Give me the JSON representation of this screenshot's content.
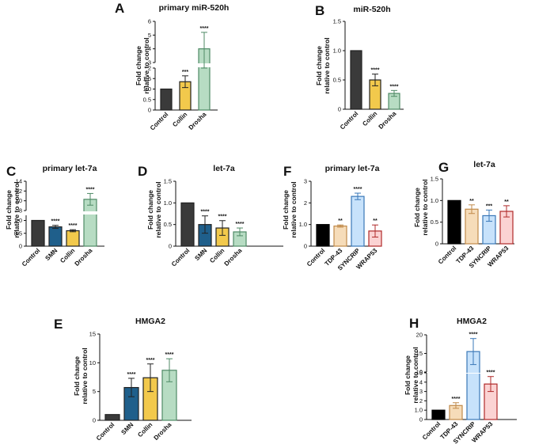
{
  "chart_data": [
    {
      "panel": "A",
      "type": "bar",
      "title": "primary miR-520h",
      "ylabel": "Fold change relative to control",
      "categories": [
        "Control",
        "Collin",
        "Drosha"
      ],
      "values": [
        1.0,
        1.35,
        4.0
      ],
      "errors": [
        0.0,
        0.28,
        1.2
      ],
      "significance": [
        "",
        "***",
        "****"
      ],
      "colors": [
        "#3a3a3a",
        "#f2c94c",
        "#b7dcc3"
      ],
      "borders": [
        "#222222",
        "#222222",
        "#4f8a66"
      ],
      "axis_break": true,
      "ylim": [
        0,
        6
      ],
      "yticks": [
        0,
        0.5,
        1.0,
        1.5,
        2.0,
        3,
        4,
        5,
        6
      ]
    },
    {
      "panel": "B",
      "type": "bar",
      "title": "miR-520h",
      "ylabel": "Fold change relative to control",
      "categories": [
        "Control",
        "Collin",
        "Drosha"
      ],
      "values": [
        1.0,
        0.5,
        0.27
      ],
      "errors": [
        0.0,
        0.1,
        0.05
      ],
      "significance": [
        "",
        "****",
        "****"
      ],
      "colors": [
        "#3a3a3a",
        "#f2c94c",
        "#b7dcc3"
      ],
      "borders": [
        "#222222",
        "#222222",
        "#4f8a66"
      ],
      "ylim": [
        0,
        1.5
      ],
      "yticks": [
        0,
        0.5,
        1.0,
        1.5
      ]
    },
    {
      "panel": "C",
      "type": "bar",
      "title": "primary let-7a",
      "ylabel": "Fold change relative to control",
      "categories": [
        "Control",
        "SMN",
        "Collin",
        "Drosha"
      ],
      "values": [
        1.0,
        0.75,
        0.6,
        10.3
      ],
      "errors": [
        0.0,
        0.06,
        0.04,
        1.2
      ],
      "significance": [
        "",
        "****",
        "****",
        "****"
      ],
      "colors": [
        "#3a3a3a",
        "#1f5f8b",
        "#f2c94c",
        "#b7dcc3"
      ],
      "borders": [
        "#222222",
        "#222222",
        "#222222",
        "#4f8a66"
      ],
      "axis_break": true,
      "ylim": [
        0,
        14
      ],
      "yticks": [
        0,
        0.5,
        1.0,
        8,
        10,
        12,
        14
      ]
    },
    {
      "panel": "D",
      "type": "bar",
      "title": "let-7a",
      "ylabel": "Fold change relative to control",
      "categories": [
        "Control",
        "SMN",
        "Collin",
        "Drosha"
      ],
      "values": [
        1.0,
        0.5,
        0.42,
        0.33
      ],
      "errors": [
        0.0,
        0.2,
        0.17,
        0.09
      ],
      "significance": [
        "",
        "****",
        "****",
        "****"
      ],
      "colors": [
        "#3a3a3a",
        "#1f5f8b",
        "#f2c94c",
        "#b7dcc3"
      ],
      "borders": [
        "#222222",
        "#222222",
        "#222222",
        "#4f8a66"
      ],
      "ylim": [
        0,
        1.5
      ],
      "yticks": [
        0,
        0.5,
        1.0,
        1.5
      ]
    },
    {
      "panel": "F",
      "type": "bar",
      "title": "primary let-7a",
      "ylabel": "Fold change relative to control",
      "categories": [
        "Control",
        "TDP-43",
        "SYNCRIP",
        "WRAP53"
      ],
      "values": [
        1.0,
        0.93,
        2.3,
        0.7
      ],
      "errors": [
        0.0,
        0.05,
        0.15,
        0.28
      ],
      "significance": [
        "",
        "**",
        "****",
        "**"
      ],
      "colors": [
        "#000000",
        "#f6dcb9",
        "#c7e2fb",
        "#fbd3d3"
      ],
      "borders": [
        "#000000",
        "#c08a4a",
        "#3a78b8",
        "#b02a2a"
      ],
      "ylim": [
        0,
        3
      ],
      "yticks": [
        0,
        1,
        2,
        3
      ]
    },
    {
      "panel": "G",
      "type": "bar",
      "title": "let-7a",
      "ylabel": "Fold change relative to control",
      "categories": [
        "Control",
        "TDP-43",
        "SYNCRIP",
        "WRAP53"
      ],
      "values": [
        1.0,
        0.8,
        0.65,
        0.75
      ],
      "errors": [
        0.0,
        0.1,
        0.13,
        0.13
      ],
      "significance": [
        "",
        "**",
        "***",
        "**"
      ],
      "colors": [
        "#000000",
        "#f6dcb9",
        "#c7e2fb",
        "#fbd3d3"
      ],
      "borders": [
        "#000000",
        "#c08a4a",
        "#3a78b8",
        "#b02a2a"
      ],
      "ylim": [
        0,
        1.5
      ],
      "yticks": [
        0,
        0.5,
        1.0,
        1.5
      ]
    },
    {
      "panel": "E",
      "type": "bar",
      "title": "HMGA2",
      "ylabel": "Fold change relative to control",
      "categories": [
        "Control",
        "SMN",
        "Collin",
        "Drosha"
      ],
      "values": [
        1.0,
        5.7,
        7.4,
        8.7
      ],
      "errors": [
        0.0,
        1.6,
        2.4,
        2.0
      ],
      "significance": [
        "",
        "****",
        "****",
        "****"
      ],
      "colors": [
        "#3a3a3a",
        "#1f5f8b",
        "#f2c94c",
        "#b7dcc3"
      ],
      "borders": [
        "#222222",
        "#222222",
        "#222222",
        "#4f8a66"
      ],
      "ylim": [
        0,
        15
      ],
      "yticks": [
        0,
        5,
        10,
        15
      ]
    },
    {
      "panel": "H",
      "type": "bar",
      "title": "HMGA2",
      "ylabel": "Fold change relative to control",
      "categories": [
        "Control",
        "TDP-43",
        "SYNCRIP",
        "WRAP53"
      ],
      "values": [
        1.0,
        1.5,
        15.5,
        3.8
      ],
      "errors": [
        0.0,
        0.3,
        3.5,
        0.8
      ],
      "significance": [
        "",
        "****",
        "****",
        "****"
      ],
      "colors": [
        "#000000",
        "#f6dcb9",
        "#c7e2fb",
        "#fbd3d3"
      ],
      "borders": [
        "#000000",
        "#c08a4a",
        "#3a78b8",
        "#b02a2a"
      ],
      "axis_break": true,
      "ylim": [
        0,
        20
      ],
      "yticks": [
        0,
        1,
        2,
        3,
        4,
        5,
        10,
        15,
        20
      ]
    }
  ]
}
